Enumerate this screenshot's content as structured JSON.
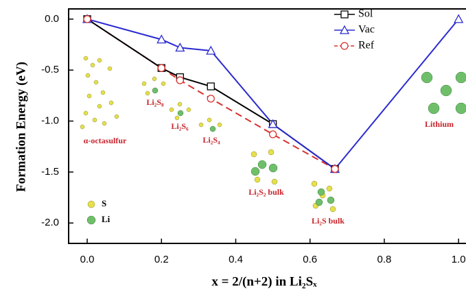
{
  "chart_data": {
    "type": "line",
    "x_label": "x = 2/(n+2) in Li₂Sₓ",
    "y_label": "Formation Energy (eV)",
    "xlim": [
      -0.05,
      1.02
    ],
    "ylim": [
      -2.2,
      0.1
    ],
    "xticks": [
      {
        "value": 0,
        "label": "0.0"
      },
      0.2,
      0.4,
      0.6,
      0.8,
      {
        "value": 1,
        "label": "1.0"
      }
    ],
    "yticks": [
      {
        "value": 0,
        "label": "0.0"
      },
      -0.5,
      {
        "value": -1,
        "label": "-1.0"
      },
      -1.5,
      {
        "value": -2,
        "label": "-2.0"
      }
    ],
    "legend": "top-right",
    "series": [
      {
        "name": "Sol",
        "color": "#000000",
        "marker": "square",
        "dash": false,
        "x": [
          0,
          0.2,
          0.25,
          0.333,
          0.5,
          0.667
        ],
        "values": [
          0,
          -0.48,
          -0.57,
          -0.66,
          -1.03,
          -1.47
        ]
      },
      {
        "name": "Vac",
        "color": "#2a2ad0",
        "marker": "triangle",
        "dash": false,
        "x": [
          0,
          0.2,
          0.25,
          0.333,
          0.5,
          0.667,
          1.0
        ],
        "values": [
          0,
          -0.2,
          -0.28,
          -0.31,
          -1.03,
          -1.47,
          0
        ]
      },
      {
        "name": "Ref",
        "color": "#d9302c",
        "marker": "circle",
        "dash": true,
        "x": [
          0,
          0.2,
          0.25,
          0.333,
          0.5,
          0.667
        ],
        "values": [
          0,
          -0.48,
          -0.6,
          -0.78,
          -1.13,
          -1.47
        ]
      }
    ],
    "annotations": [
      "α-octasulfur",
      "Li₂S₈",
      "Li₂S₆",
      "Li₂S₄",
      "Li₂S₂ bulk",
      "Li₂S bulk",
      "Lithium"
    ],
    "atom_legend": [
      "S",
      "Li"
    ]
  }
}
